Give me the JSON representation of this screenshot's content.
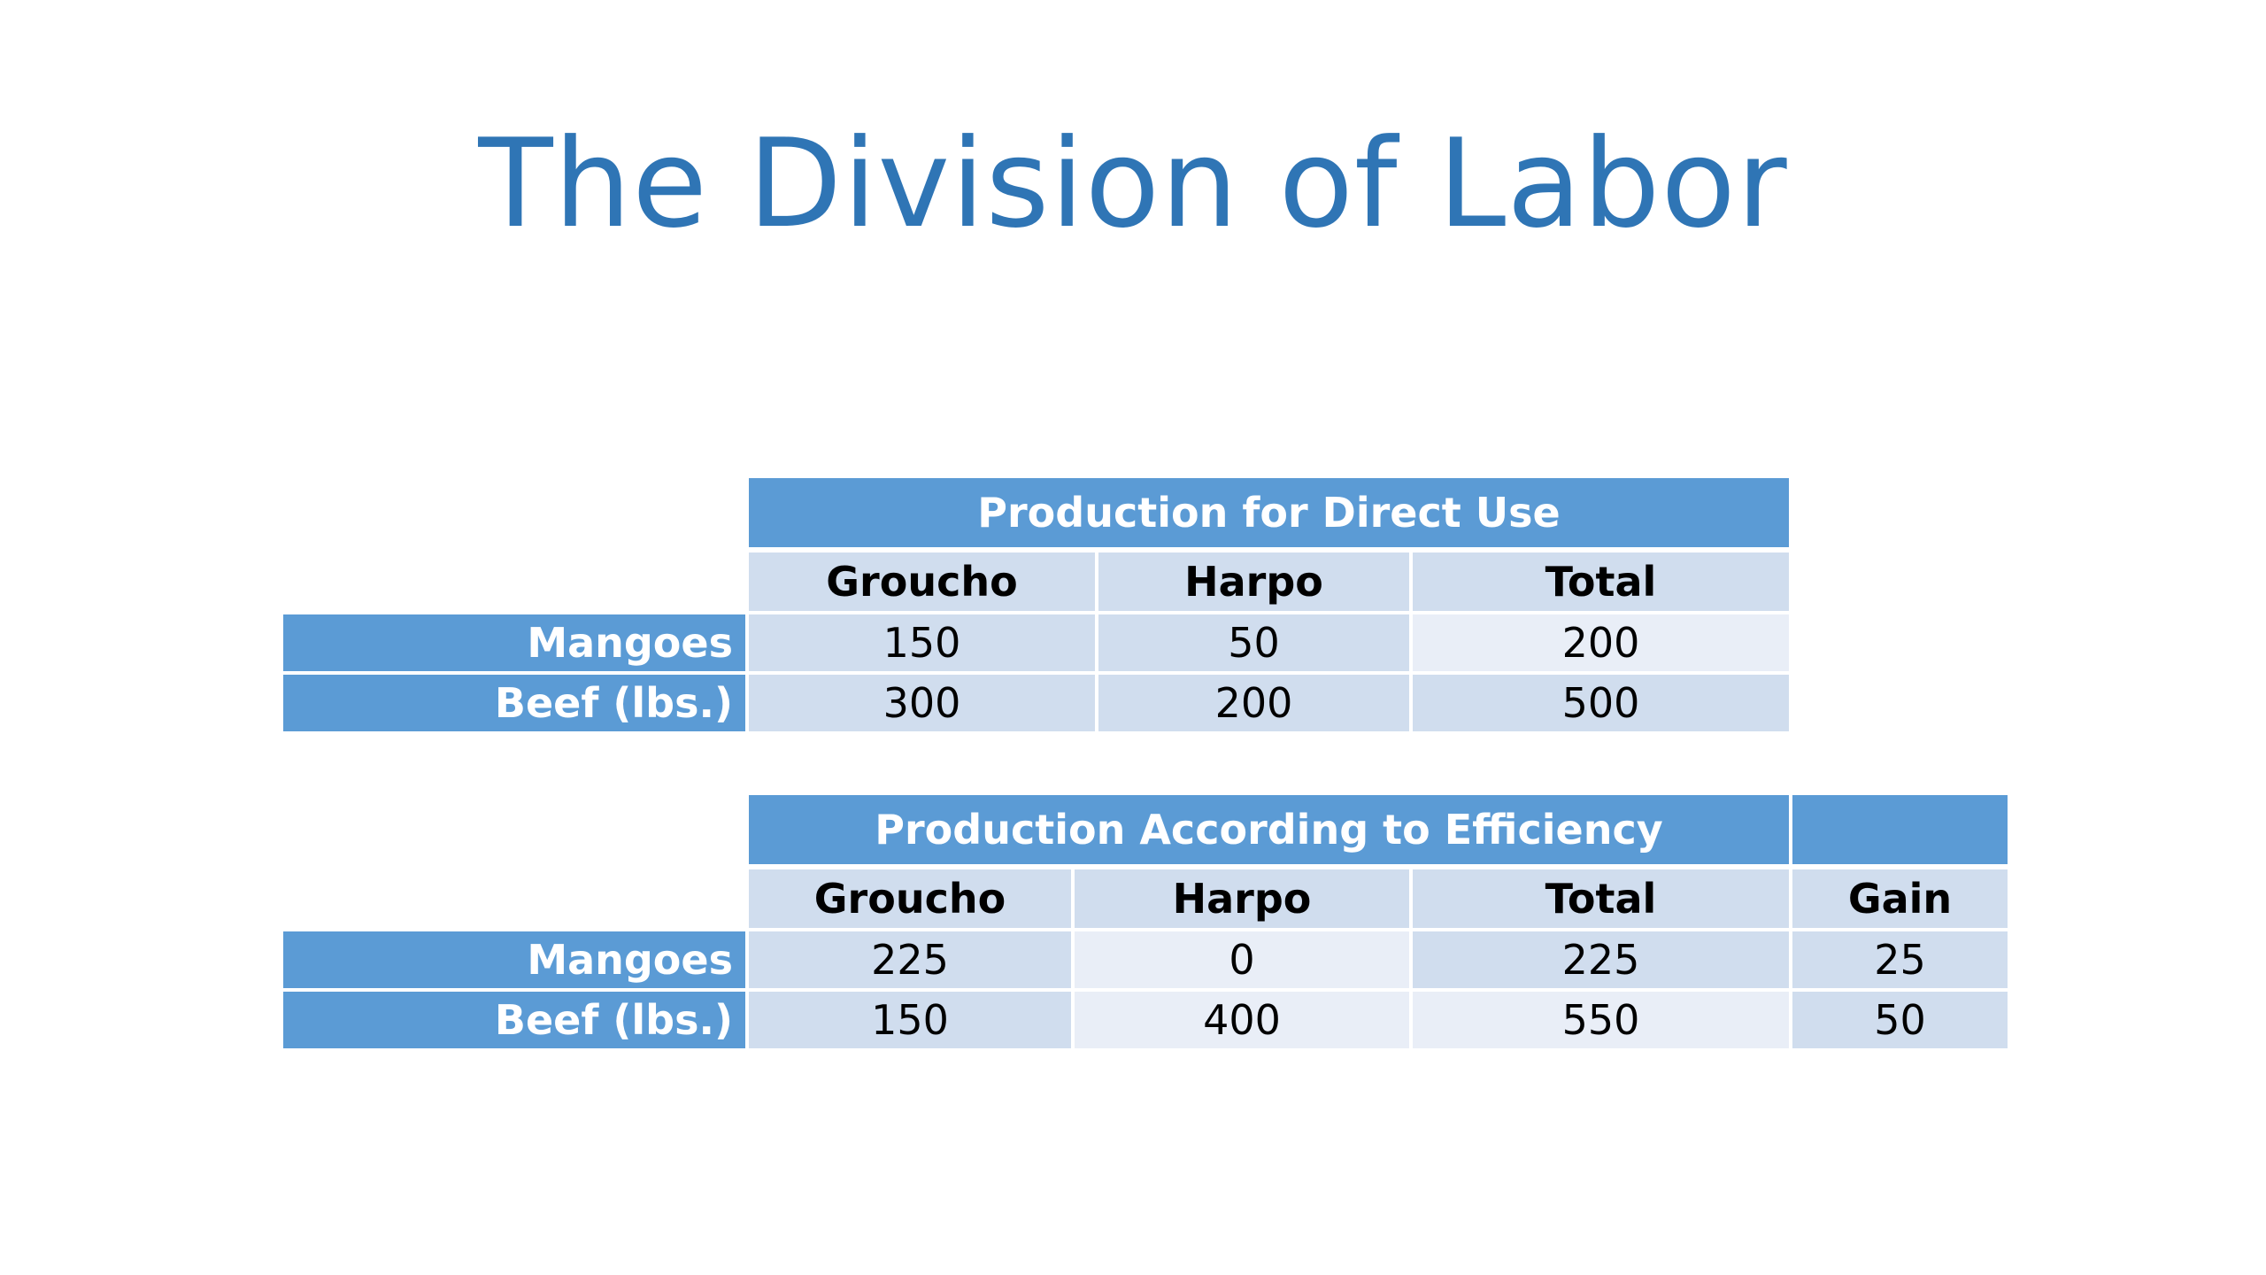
{
  "slide": {
    "title": "The Division of Labor"
  },
  "table1": {
    "caption": "Production for Direct Use",
    "columns": [
      "Groucho",
      "Harpo",
      "Total"
    ],
    "rows": [
      {
        "label": "Mangoes",
        "values": [
          "150",
          "50",
          "200"
        ]
      },
      {
        "label": "Beef (lbs.)",
        "values": [
          "300",
          "200",
          "500"
        ]
      }
    ]
  },
  "table2": {
    "caption": "Production According to Efficiency",
    "columns": [
      "Groucho",
      "Harpo",
      "Total",
      "Gain"
    ],
    "rows": [
      {
        "label": "Mangoes",
        "values": [
          "225",
          "0",
          "225",
          "25"
        ]
      },
      {
        "label": "Beef (lbs.)",
        "values": [
          "150",
          "400",
          "550",
          "50"
        ]
      }
    ]
  },
  "colors": {
    "title": "#2f75b5",
    "header_band": "#5b9bd5",
    "cell_dark": "#d0ddee",
    "cell_light": "#e9eef7"
  }
}
